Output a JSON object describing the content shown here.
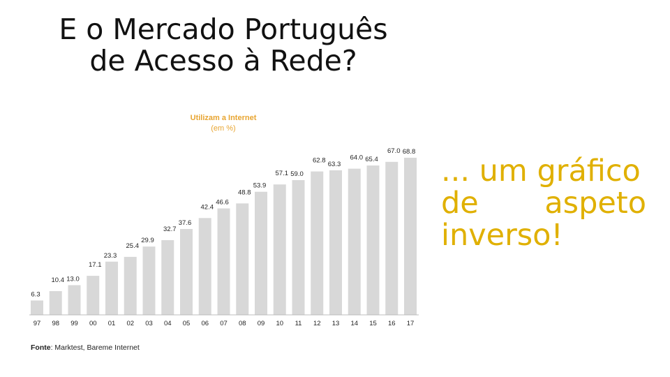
{
  "slide": {
    "title_line1": "E o Mercado Português",
    "title_line2": "de Acesso à Rede?",
    "side_line1": "... um gráfico",
    "side_line2_a": "de",
    "side_line2_b": "aspeto",
    "side_line3": "inverso!",
    "source_label": "Fonte",
    "source_text": ": Marktest, Bareme Internet"
  },
  "colors": {
    "accent_text": "#e0b000",
    "chart_title": "#e8a531",
    "bar": "#d8d8d8"
  },
  "chart_data": {
    "type": "bar",
    "title": "Utilizam a Internet",
    "subtitle": "(em %)",
    "categories": [
      "97",
      "98",
      "99",
      "00",
      "01",
      "02",
      "03",
      "04",
      "05",
      "06",
      "07",
      "08",
      "09",
      "10",
      "11",
      "12",
      "13",
      "14",
      "15",
      "16",
      "17"
    ],
    "values": [
      6.3,
      10.4,
      13.0,
      17.1,
      23.3,
      25.4,
      29.9,
      32.7,
      37.6,
      42.4,
      46.6,
      48.8,
      53.9,
      57.1,
      59.0,
      62.8,
      63.3,
      64.0,
      65.4,
      67.0,
      68.8
    ],
    "value_labels": [
      "6.3",
      "10.4",
      "13.0",
      "17.1",
      "23.3",
      "25.4",
      "29.9",
      "32.7",
      "37.6",
      "42.4",
      "46.6",
      "48.8",
      "53.9",
      "57.1",
      "59.0",
      "62.8",
      "63.3",
      "64.0",
      "65.4",
      "67.0",
      "68.8"
    ],
    "ylim": [
      0,
      70
    ],
    "grid": false,
    "legend": "none"
  }
}
